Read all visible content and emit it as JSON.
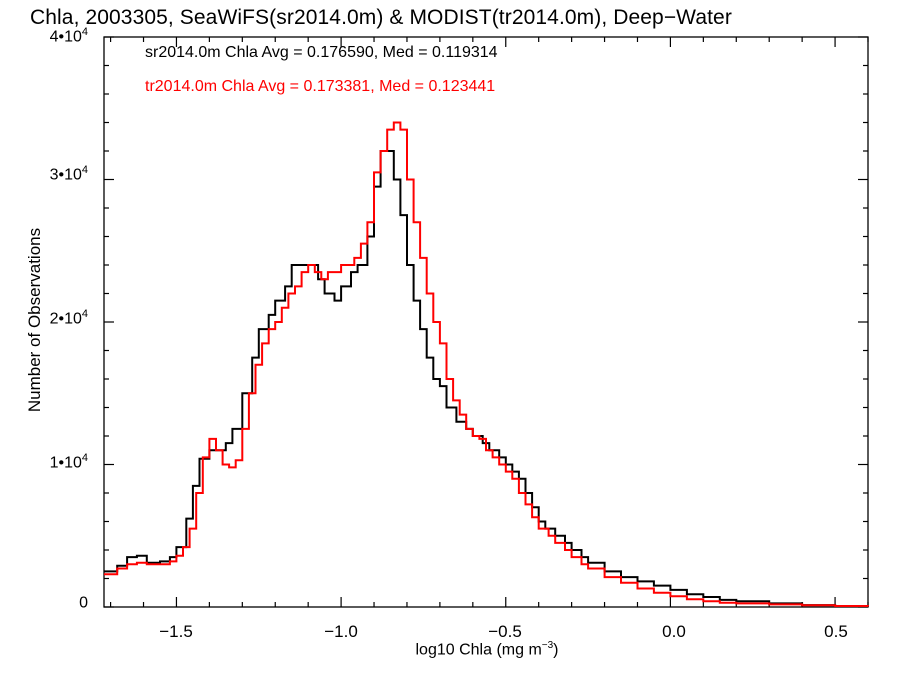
{
  "title": "Chla, 2003305, SeaWiFS(sr2014.0m) & MODIST(tr2014.0m), Deep−Water",
  "annotations": [
    {
      "text": "sr2014.0m Chla Avg = 0.176590, Med = 0.119314",
      "color": "#000000"
    },
    {
      "text": "tr2014.0m Chla Avg = 0.173381, Med = 0.123441",
      "color": "#ff0000"
    }
  ],
  "axes": {
    "xlabel_main": "log10 Chla (mg m",
    "xlabel_sup": "−3",
    "xlabel_close": ")",
    "ylabel": "Number of Observations",
    "yticks": [
      {
        "base": "0",
        "exp": ""
      },
      {
        "base": "1•10",
        "exp": "4"
      },
      {
        "base": "2•10",
        "exp": "4"
      },
      {
        "base": "3•10",
        "exp": "4"
      },
      {
        "base": "4•10",
        "exp": "4"
      }
    ],
    "xticks": [
      "−1.5",
      "−1.0",
      "−0.5",
      "0.0",
      "0.5"
    ]
  },
  "chart_data": {
    "type": "line",
    "step": true,
    "xlim": [
      -1.72,
      0.6
    ],
    "ylim": [
      0,
      40000
    ],
    "xticks": [
      -1.5,
      -1.0,
      -0.5,
      0.0,
      0.5
    ],
    "yticks": [
      0,
      10000,
      20000,
      30000,
      40000
    ],
    "grid": false,
    "series": [
      {
        "color": "#000000",
        "points": [
          [
            -1.72,
            2500
          ],
          [
            -1.68,
            2900
          ],
          [
            -1.65,
            3500
          ],
          [
            -1.62,
            3600
          ],
          [
            -1.59,
            3100
          ],
          [
            -1.55,
            3200
          ],
          [
            -1.52,
            3500
          ],
          [
            -1.5,
            4200
          ],
          [
            -1.47,
            6200
          ],
          [
            -1.45,
            8500
          ],
          [
            -1.43,
            10400
          ],
          [
            -1.4,
            11000
          ],
          [
            -1.37,
            11000
          ],
          [
            -1.35,
            11500
          ],
          [
            -1.33,
            12500
          ],
          [
            -1.3,
            15000
          ],
          [
            -1.27,
            17500
          ],
          [
            -1.25,
            19500
          ],
          [
            -1.22,
            20500
          ],
          [
            -1.2,
            21500
          ],
          [
            -1.17,
            22500
          ],
          [
            -1.15,
            24000
          ],
          [
            -1.12,
            24000
          ],
          [
            -1.09,
            24000
          ],
          [
            -1.07,
            23000
          ],
          [
            -1.05,
            22000
          ],
          [
            -1.02,
            21500
          ],
          [
            -1.0,
            22500
          ],
          [
            -0.97,
            23500
          ],
          [
            -0.95,
            24000
          ],
          [
            -0.92,
            26000
          ],
          [
            -0.9,
            29500
          ],
          [
            -0.88,
            32000
          ],
          [
            -0.86,
            32000
          ],
          [
            -0.84,
            30000
          ],
          [
            -0.82,
            27500
          ],
          [
            -0.8,
            24000
          ],
          [
            -0.78,
            21500
          ],
          [
            -0.76,
            19500
          ],
          [
            -0.74,
            17500
          ],
          [
            -0.72,
            16000
          ],
          [
            -0.7,
            15500
          ],
          [
            -0.68,
            14000
          ],
          [
            -0.65,
            13000
          ],
          [
            -0.62,
            12500
          ],
          [
            -0.6,
            12000
          ],
          [
            -0.57,
            11500
          ],
          [
            -0.55,
            11000
          ],
          [
            -0.52,
            10500
          ],
          [
            -0.5,
            10000
          ],
          [
            -0.48,
            9500
          ],
          [
            -0.46,
            9000
          ],
          [
            -0.44,
            8000
          ],
          [
            -0.42,
            7000
          ],
          [
            -0.4,
            6000
          ],
          [
            -0.38,
            5500
          ],
          [
            -0.35,
            5000
          ],
          [
            -0.32,
            4500
          ],
          [
            -0.3,
            4000
          ],
          [
            -0.27,
            3500
          ],
          [
            -0.25,
            3100
          ],
          [
            -0.2,
            2500
          ],
          [
            -0.15,
            2100
          ],
          [
            -0.1,
            1800
          ],
          [
            -0.05,
            1500
          ],
          [
            0.0,
            1200
          ],
          [
            0.05,
            900
          ],
          [
            0.1,
            700
          ],
          [
            0.15,
            500
          ],
          [
            0.2,
            400
          ],
          [
            0.3,
            250
          ],
          [
            0.4,
            130
          ],
          [
            0.5,
            60
          ],
          [
            0.6,
            30
          ]
        ]
      },
      {
        "color": "#ff0000",
        "points": [
          [
            -1.72,
            2300
          ],
          [
            -1.68,
            2700
          ],
          [
            -1.65,
            3000
          ],
          [
            -1.62,
            3100
          ],
          [
            -1.59,
            3000
          ],
          [
            -1.55,
            3000
          ],
          [
            -1.52,
            3200
          ],
          [
            -1.5,
            3600
          ],
          [
            -1.48,
            4200
          ],
          [
            -1.46,
            5500
          ],
          [
            -1.44,
            8000
          ],
          [
            -1.42,
            10500
          ],
          [
            -1.4,
            11800
          ],
          [
            -1.38,
            11000
          ],
          [
            -1.36,
            10000
          ],
          [
            -1.34,
            9800
          ],
          [
            -1.32,
            10300
          ],
          [
            -1.3,
            12500
          ],
          [
            -1.28,
            15000
          ],
          [
            -1.26,
            17000
          ],
          [
            -1.24,
            18500
          ],
          [
            -1.22,
            19500
          ],
          [
            -1.2,
            20000
          ],
          [
            -1.18,
            21000
          ],
          [
            -1.16,
            22000
          ],
          [
            -1.14,
            22500
          ],
          [
            -1.12,
            23500
          ],
          [
            -1.1,
            24000
          ],
          [
            -1.08,
            23500
          ],
          [
            -1.06,
            23000
          ],
          [
            -1.04,
            23500
          ],
          [
            -1.02,
            23500
          ],
          [
            -1.0,
            24000
          ],
          [
            -0.98,
            24000
          ],
          [
            -0.96,
            24500
          ],
          [
            -0.94,
            25500
          ],
          [
            -0.92,
            27000
          ],
          [
            -0.9,
            30500
          ],
          [
            -0.88,
            32000
          ],
          [
            -0.86,
            33500
          ],
          [
            -0.84,
            34000
          ],
          [
            -0.82,
            33500
          ],
          [
            -0.8,
            30000
          ],
          [
            -0.78,
            27000
          ],
          [
            -0.76,
            24500
          ],
          [
            -0.74,
            22000
          ],
          [
            -0.72,
            20000
          ],
          [
            -0.7,
            18500
          ],
          [
            -0.68,
            16000
          ],
          [
            -0.66,
            14500
          ],
          [
            -0.64,
            13500
          ],
          [
            -0.62,
            12500
          ],
          [
            -0.6,
            12000
          ],
          [
            -0.58,
            11800
          ],
          [
            -0.56,
            11000
          ],
          [
            -0.54,
            10500
          ],
          [
            -0.52,
            10000
          ],
          [
            -0.5,
            9500
          ],
          [
            -0.48,
            9000
          ],
          [
            -0.46,
            8000
          ],
          [
            -0.44,
            7200
          ],
          [
            -0.42,
            6300
          ],
          [
            -0.4,
            5500
          ],
          [
            -0.37,
            5000
          ],
          [
            -0.35,
            4500
          ],
          [
            -0.32,
            4000
          ],
          [
            -0.3,
            3500
          ],
          [
            -0.27,
            3000
          ],
          [
            -0.25,
            2700
          ],
          [
            -0.2,
            2100
          ],
          [
            -0.15,
            1700
          ],
          [
            -0.1,
            1300
          ],
          [
            -0.05,
            1000
          ],
          [
            0.0,
            750
          ],
          [
            0.05,
            550
          ],
          [
            0.1,
            400
          ],
          [
            0.15,
            300
          ],
          [
            0.2,
            250
          ],
          [
            0.3,
            180
          ],
          [
            0.4,
            120
          ],
          [
            0.5,
            70
          ],
          [
            0.6,
            40
          ]
        ]
      }
    ]
  }
}
